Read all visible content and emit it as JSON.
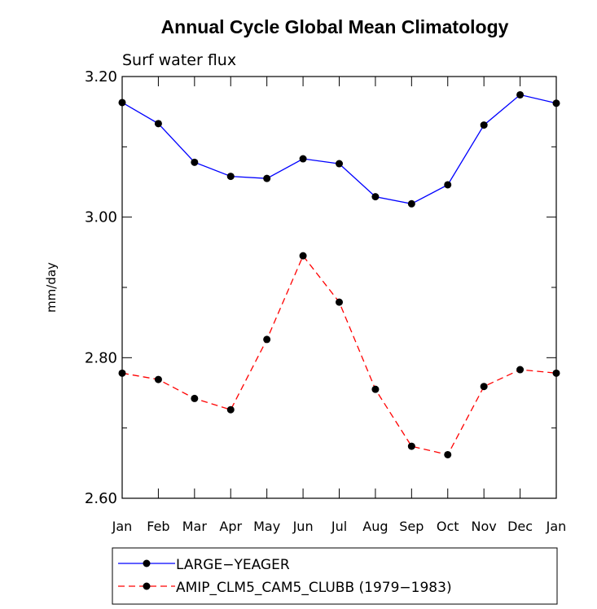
{
  "chart_data": {
    "type": "line",
    "title": "Annual Cycle Global Mean Climatology",
    "subtitle": "Surf water flux",
    "xlabel": "",
    "ylabel": "mm/day",
    "categories": [
      "Jan",
      "Feb",
      "Mar",
      "Apr",
      "May",
      "Jun",
      "Jul",
      "Aug",
      "Sep",
      "Oct",
      "Nov",
      "Dec",
      "Jan"
    ],
    "ylim": [
      2.6,
      3.2
    ],
    "yticks": [
      2.6,
      2.8,
      3.0,
      3.2
    ],
    "ytick_labels": [
      "2.60",
      "2.80",
      "3.00",
      "3.20"
    ],
    "series": [
      {
        "name": "LARGE−YEAGER",
        "color": "#0000ff",
        "dash": "solid",
        "values": [
          3.163,
          3.133,
          3.078,
          3.058,
          3.055,
          3.083,
          3.076,
          3.029,
          3.019,
          3.046,
          3.131,
          3.174,
          3.162
        ]
      },
      {
        "name": "AMIP_CLM5_CAM5_CLUBB (1979−1983)",
        "color": "#ff0000",
        "dash": "dashed",
        "values": [
          2.778,
          2.769,
          2.742,
          2.726,
          2.826,
          2.945,
          2.879,
          2.755,
          2.674,
          2.662,
          2.759,
          2.783,
          2.778
        ]
      }
    ]
  }
}
